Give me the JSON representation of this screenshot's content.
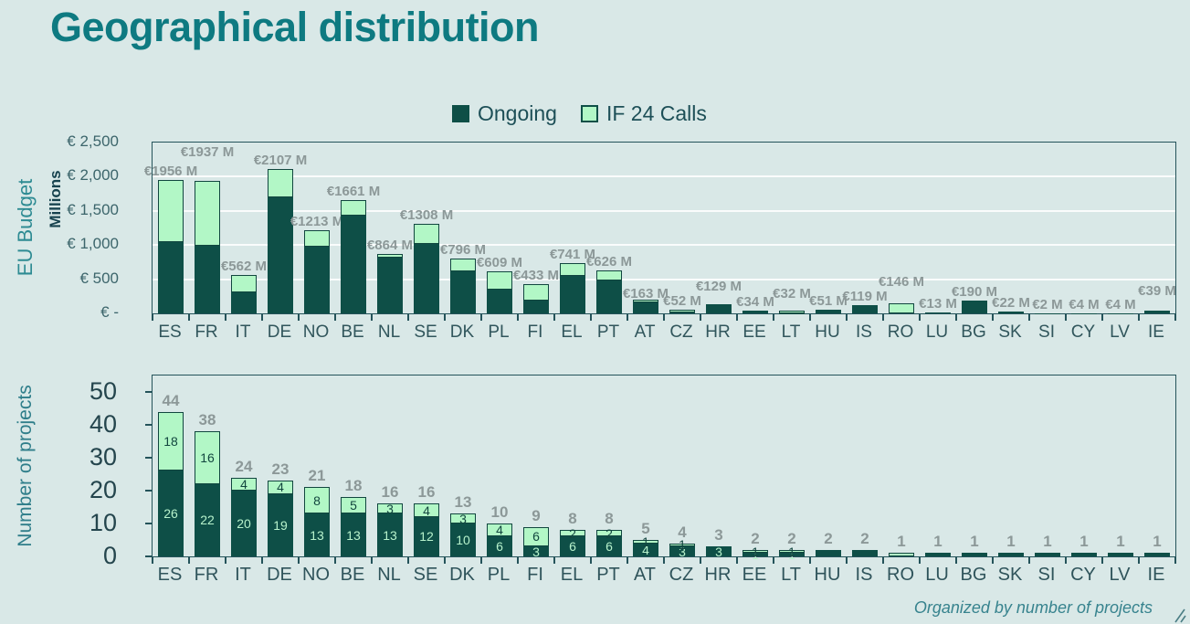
{
  "title": "Geographical distribution",
  "legend": [
    {
      "label": "Ongoing",
      "color": "#0e4f47"
    },
    {
      "label": "IF 24 Calls",
      "color": "#b2f7c6"
    }
  ],
  "colors": {
    "background": "#d9e8e7",
    "title": "#0e7a81",
    "ongoing": "#0e4f47",
    "if24": "#b2f7c6",
    "axis": "#24535a",
    "value_label_gray": "#8c9898",
    "seg_label_on_dark": "#b7f2cc",
    "seg_label_on_light": "#12463f"
  },
  "footnote": "Organized by number of projects",
  "chart_data": [
    {
      "type": "bar",
      "stacked": true,
      "ylabel": "EU Budget",
      "ylabel2": "Millions",
      "ylim": [
        0,
        2500
      ],
      "gridlines": [
        500,
        1000,
        1500,
        2000
      ],
      "yticks": [
        {
          "value": 2500,
          "label": "€ 2,500"
        },
        {
          "value": 2000,
          "label": "€ 2,000"
        },
        {
          "value": 1500,
          "label": "€ 1,500"
        },
        {
          "value": 1000,
          "label": "€ 1,000"
        },
        {
          "value": 500,
          "label": "€ 500"
        },
        {
          "value": 0,
          "label": "€ -"
        }
      ],
      "categories": [
        "ES",
        "FR",
        "IT",
        "DE",
        "NO",
        "BE",
        "NL",
        "SE",
        "DK",
        "PL",
        "FI",
        "EL",
        "PT",
        "AT",
        "CZ",
        "HR",
        "EE",
        "LT",
        "HU",
        "IS",
        "RO",
        "LU",
        "BG",
        "SK",
        "SI",
        "CY",
        "LV",
        "IE"
      ],
      "series": [
        {
          "name": "Ongoing",
          "values": [
            1040,
            993,
            310,
            1700,
            975,
            1430,
            815,
            1010,
            615,
            345,
            185,
            550,
            480,
            155,
            10,
            129,
            34,
            5,
            51,
            119,
            0,
            13,
            190,
            22,
            2,
            4,
            4,
            39
          ]
        },
        {
          "name": "IF 24 Calls",
          "values": [
            916,
            944,
            252,
            407,
            238,
            231,
            49,
            298,
            181,
            264,
            248,
            191,
            146,
            8,
            42,
            0,
            0,
            27,
            0,
            0,
            146,
            0,
            0,
            0,
            0,
            0,
            0,
            0
          ]
        }
      ],
      "totals_labels": [
        "€1956 M",
        "€1937 M",
        "€562 M",
        "€2107 M",
        "€1213 M",
        "€1661 M",
        "€864 M",
        "€1308 M",
        "€796 M",
        "€609 M",
        "€433 M",
        "€741 M",
        "€626 M",
        "€163 M",
        "€52 M",
        "€129 M",
        "€34 M",
        "€32 M",
        "€51 M",
        "€119 M",
        "€146 M",
        "€13 M",
        "€190 M",
        "€22 M",
        "€2 M",
        "€4 M",
        "€4 M",
        "€39 M"
      ]
    },
    {
      "type": "bar",
      "stacked": true,
      "ylabel": "Number of projects",
      "ylim": [
        0,
        55
      ],
      "gridlines": [],
      "yticks": [
        {
          "value": 0,
          "label": "0"
        },
        {
          "value": 10,
          "label": "10"
        },
        {
          "value": 20,
          "label": "20"
        },
        {
          "value": 30,
          "label": "30"
        },
        {
          "value": 40,
          "label": "40"
        },
        {
          "value": 50,
          "label": "50"
        }
      ],
      "categories": [
        "ES",
        "FR",
        "IT",
        "DE",
        "NO",
        "BE",
        "NL",
        "SE",
        "DK",
        "PL",
        "FI",
        "EL",
        "PT",
        "AT",
        "CZ",
        "HR",
        "EE",
        "LT",
        "HU",
        "IS",
        "RO",
        "LU",
        "BG",
        "SK",
        "SI",
        "CY",
        "LV",
        "IE"
      ],
      "series": [
        {
          "name": "Ongoing",
          "values": [
            26,
            22,
            20,
            19,
            13,
            13,
            13,
            12,
            10,
            6,
            3,
            6,
            6,
            4,
            3,
            3,
            1,
            1,
            2,
            2,
            0,
            1,
            1,
            1,
            1,
            1,
            1,
            1
          ],
          "labels": [
            "26",
            "22",
            "20",
            "19",
            "13",
            "13",
            "13",
            "12",
            "10",
            "6",
            "3",
            "6",
            "6",
            "4",
            "3",
            "3",
            "1",
            "1",
            "",
            "",
            "",
            "",
            "",
            "",
            "",
            "",
            "",
            ""
          ]
        },
        {
          "name": "IF 24 Calls",
          "values": [
            18,
            16,
            4,
            4,
            8,
            5,
            3,
            4,
            3,
            4,
            6,
            2,
            2,
            1,
            1,
            0,
            1,
            1,
            0,
            0,
            1,
            0,
            0,
            0,
            0,
            0,
            0,
            0
          ],
          "labels": [
            "18",
            "16",
            "4",
            "4",
            "8",
            "5",
            "3",
            "4",
            "3",
            "4",
            "6",
            "2",
            "2",
            "1",
            "1",
            "",
            "1",
            "1",
            "",
            "",
            "",
            "",
            "",
            "",
            "",
            "",
            "",
            ""
          ]
        }
      ],
      "totals_labels": [
        "44",
        "38",
        "24",
        "23",
        "21",
        "18",
        "16",
        "16",
        "13",
        "10",
        "9",
        "8",
        "8",
        "5",
        "4",
        "3",
        "2",
        "2",
        "2",
        "2",
        "1",
        "1",
        "1",
        "1",
        "1",
        "1",
        "1",
        "1"
      ]
    }
  ]
}
